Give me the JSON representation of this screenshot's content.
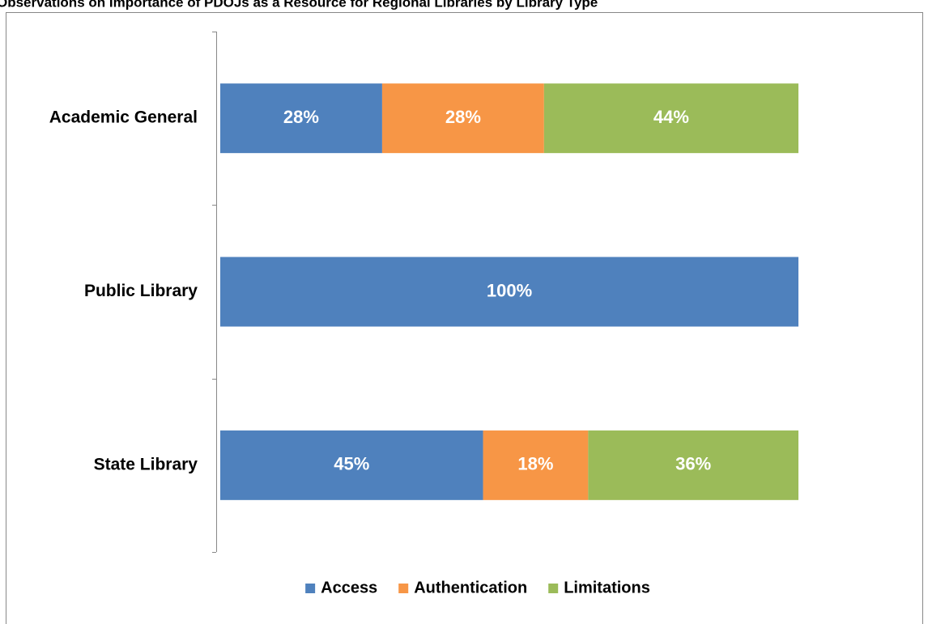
{
  "chart_data": {
    "type": "stacked_bar_horizontal",
    "title": "Observations on Importance of PDOJs as a Resource for Regional Libraries by Library Type",
    "categories": [
      "Academic General",
      "Public Library",
      "State Library"
    ],
    "series": [
      {
        "name": "Access",
        "color": "#4f81bd",
        "values": [
          28,
          100,
          45
        ],
        "value_labels": [
          "28%",
          "100%",
          "45%"
        ]
      },
      {
        "name": "Authentication",
        "color": "#f79646",
        "values": [
          28,
          0,
          18
        ],
        "value_labels": [
          "28%",
          null,
          "18%"
        ]
      },
      {
        "name": "Limitations",
        "color": "#9bbb59",
        "values": [
          44,
          0,
          36
        ],
        "value_labels": [
          "44%",
          null,
          "36%"
        ]
      }
    ],
    "legend": "bottom"
  }
}
